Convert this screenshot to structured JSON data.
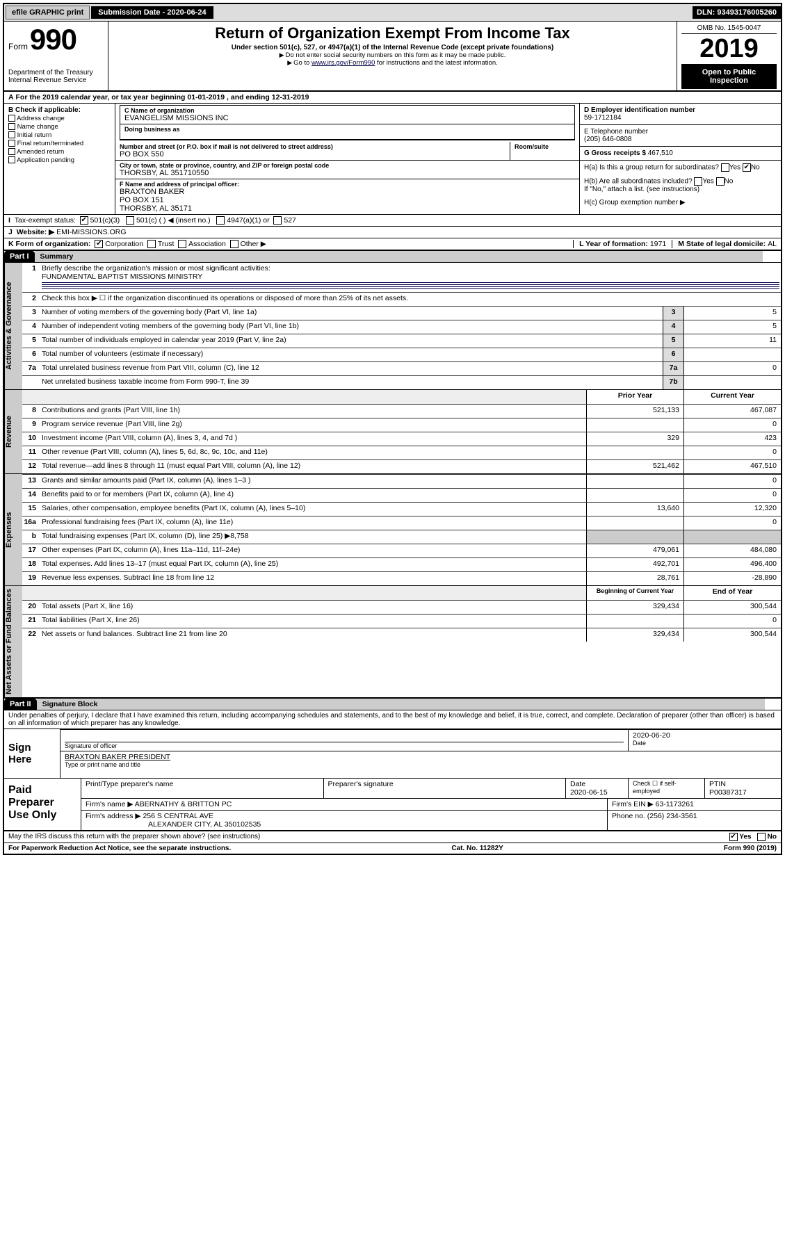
{
  "topbar": {
    "efile": "efile GRAPHIC print",
    "subdate_label": "Submission Date - ",
    "subdate": "2020-06-24",
    "dln_label": "DLN: ",
    "dln": "93493176005260"
  },
  "header": {
    "form_word": "Form",
    "form_no": "990",
    "title": "Return of Organization Exempt From Income Tax",
    "subtitle": "Under section 501(c), 527, or 4947(a)(1) of the Internal Revenue Code (except private foundations)",
    "nossn": "Do not enter social security numbers on this form as it may be made public.",
    "goto_pre": "Go to ",
    "goto_link": "www.irs.gov/Form990",
    "goto_post": " for instructions and the latest information.",
    "omb": "OMB No. 1545-0047",
    "year": "2019",
    "open": "Open to Public Inspection",
    "dept1": "Department of the Treasury",
    "dept2": "Internal Revenue Service"
  },
  "calyear": {
    "pre": "For the 2019 calendar year, or tax year beginning ",
    "begin": "01-01-2019",
    "mid": " , and ending ",
    "end": "12-31-2019"
  },
  "boxB": {
    "label": "B Check if applicable:",
    "items": [
      "Address change",
      "Name change",
      "Initial return",
      "Final return/terminated",
      "Amended return",
      "Application pending"
    ],
    "app_pending_note": ""
  },
  "boxC": {
    "name_lbl": "C Name of organization",
    "name": "EVANGELISM MISSIONS INC",
    "dba_lbl": "Doing business as",
    "dba": "",
    "addr_lbl": "Number and street (or P.O. box if mail is not delivered to street address)",
    "room_lbl": "Room/suite",
    "addr": "PO BOX 550",
    "city_lbl": "City or town, state or province, country, and ZIP or foreign postal code",
    "city": "THORSBY, AL  351710550",
    "officer_lbl": "F  Name and address of principal officer:",
    "officer_name": "BRAXTON BAKER",
    "officer_addr1": "PO BOX 151",
    "officer_addr2": "THORSBY, AL  35171"
  },
  "boxD": {
    "lbl": "D Employer identification number",
    "val": "59-1712184"
  },
  "boxE": {
    "lbl": "E Telephone number",
    "val": "(205) 646-0808"
  },
  "boxG": {
    "lbl": "G Gross receipts $ ",
    "val": "467,510"
  },
  "boxH": {
    "a_lbl": "H(a)  Is this a group return for subordinates?",
    "yes": "Yes",
    "no": "No",
    "b_lbl": "H(b)  Are all subordinates included?",
    "b_note": "If \"No,\" attach a list. (see instructions)",
    "c_lbl": "H(c)  Group exemption number ▶"
  },
  "taxexempt": {
    "lbl": "Tax-exempt status:",
    "c3": "501(c)(3)",
    "c": "501(c) (   ) ◀ (insert no.)",
    "a1": "4947(a)(1) or",
    "527": "527"
  },
  "website": {
    "lbl": "Website: ▶",
    "val": "EMI-MISSIONS.ORG"
  },
  "korg": {
    "lbl": "K Form of organization:",
    "opts": [
      "Corporation",
      "Trust",
      "Association",
      "Other ▶"
    ],
    "checked": 0,
    "L_lbl": "L Year of formation: ",
    "L_val": "1971",
    "M_lbl": "M State of legal domicile: ",
    "M_val": "AL"
  },
  "part1": {
    "hdr": "Part I",
    "title": "Summary"
  },
  "sum": {
    "q1_lbl": "Briefly describe the organization's mission or most significant activities:",
    "q1_val": "FUNDAMENTAL BAPTIST MISSIONS MINISTRY",
    "q2": "Check this box ▶ ☐  if the organization discontinued its operations or disposed of more than 25% of its net assets.",
    "rows_gov": [
      {
        "n": "3",
        "t": "Number of voting members of the governing body (Part VI, line 1a)",
        "box": "3",
        "v": "5"
      },
      {
        "n": "4",
        "t": "Number of independent voting members of the governing body (Part VI, line 1b)",
        "box": "4",
        "v": "5"
      },
      {
        "n": "5",
        "t": "Total number of individuals employed in calendar year 2019 (Part V, line 2a)",
        "box": "5",
        "v": "11"
      },
      {
        "n": "6",
        "t": "Total number of volunteers (estimate if necessary)",
        "box": "6",
        "v": ""
      },
      {
        "n": "7a",
        "t": "Total unrelated business revenue from Part VIII, column (C), line 12",
        "box": "7a",
        "v": "0"
      },
      {
        "n": "",
        "t": "Net unrelated business taxable income from Form 990-T, line 39",
        "box": "7b",
        "v": ""
      }
    ],
    "col_prior": "Prior Year",
    "col_curr": "Current Year",
    "col_beg": "Beginning of Current Year",
    "col_end": "End of Year",
    "rev": [
      {
        "n": "8",
        "t": "Contributions and grants (Part VIII, line 1h)",
        "p": "521,133",
        "c": "467,087"
      },
      {
        "n": "9",
        "t": "Program service revenue (Part VIII, line 2g)",
        "p": "",
        "c": "0"
      },
      {
        "n": "10",
        "t": "Investment income (Part VIII, column (A), lines 3, 4, and 7d )",
        "p": "329",
        "c": "423"
      },
      {
        "n": "11",
        "t": "Other revenue (Part VIII, column (A), lines 5, 6d, 8c, 9c, 10c, and 11e)",
        "p": "",
        "c": "0"
      },
      {
        "n": "12",
        "t": "Total revenue—add lines 8 through 11 (must equal Part VIII, column (A), line 12)",
        "p": "521,462",
        "c": "467,510"
      }
    ],
    "exp": [
      {
        "n": "13",
        "t": "Grants and similar amounts paid (Part IX, column (A), lines 1–3 )",
        "p": "",
        "c": "0"
      },
      {
        "n": "14",
        "t": "Benefits paid to or for members (Part IX, column (A), line 4)",
        "p": "",
        "c": "0"
      },
      {
        "n": "15",
        "t": "Salaries, other compensation, employee benefits (Part IX, column (A), lines 5–10)",
        "p": "13,640",
        "c": "12,320"
      },
      {
        "n": "16a",
        "t": "Professional fundraising fees (Part IX, column (A), line 11e)",
        "p": "",
        "c": "0"
      },
      {
        "n": "b",
        "t": "Total fundraising expenses (Part IX, column (D), line 25) ▶8,758",
        "p": "—",
        "c": "—"
      },
      {
        "n": "17",
        "t": "Other expenses (Part IX, column (A), lines 11a–11d, 11f–24e)",
        "p": "479,061",
        "c": "484,080"
      },
      {
        "n": "18",
        "t": "Total expenses. Add lines 13–17 (must equal Part IX, column (A), line 25)",
        "p": "492,701",
        "c": "496,400"
      },
      {
        "n": "19",
        "t": "Revenue less expenses. Subtract line 18 from line 12",
        "p": "28,761",
        "c": "-28,890"
      }
    ],
    "net": [
      {
        "n": "20",
        "t": "Total assets (Part X, line 16)",
        "p": "329,434",
        "c": "300,544"
      },
      {
        "n": "21",
        "t": "Total liabilities (Part X, line 26)",
        "p": "",
        "c": "0"
      },
      {
        "n": "22",
        "t": "Net assets or fund balances. Subtract line 21 from line 20",
        "p": "329,434",
        "c": "300,544"
      }
    ]
  },
  "vtabs": {
    "gov": "Activities & Governance",
    "rev": "Revenue",
    "exp": "Expenses",
    "net": "Net Assets or Fund Balances"
  },
  "part2": {
    "hdr": "Part II",
    "title": "Signature Block"
  },
  "perjury": "Under penalties of perjury, I declare that I have examined this return, including accompanying schedules and statements, and to the best of my knowledge and belief, it is true, correct, and complete. Declaration of preparer (other than officer) is based on all information of which preparer has any knowledge.",
  "sign": {
    "label": "Sign Here",
    "sig_of_officer": "Signature of officer",
    "date_lbl": "Date",
    "date": "2020-06-20",
    "name_title": "BRAXTON BAKER  PRESIDENT",
    "type_lbl": "Type or print name and title"
  },
  "paid": {
    "label": "Paid Preparer Use Only",
    "h_print": "Print/Type preparer's name",
    "h_sig": "Preparer's signature",
    "h_date": "Date",
    "h_check": "Check ☐ if self-employed",
    "h_ptin": "PTIN",
    "date": "2020-06-15",
    "ptin": "P00387317",
    "firm_lbl": "Firm's name    ▶",
    "firm": "ABERNATHY & BRITTON PC",
    "ein_lbl": "Firm's EIN ▶",
    "ein": "63-1173261",
    "addr_lbl": "Firm's address ▶",
    "addr1": "256 S CENTRAL AVE",
    "addr2": "ALEXANDER CITY, AL  350102535",
    "phone_lbl": "Phone no. ",
    "phone": "(256) 234-3561"
  },
  "discuss": {
    "q": "May the IRS discuss this return with the preparer shown above? (see instructions)",
    "yes": "Yes",
    "no": "No"
  },
  "footer": {
    "pra": "For Paperwork Reduction Act Notice, see the separate instructions.",
    "cat": "Cat. No. 11282Y",
    "form": "Form 990 (2019)"
  }
}
